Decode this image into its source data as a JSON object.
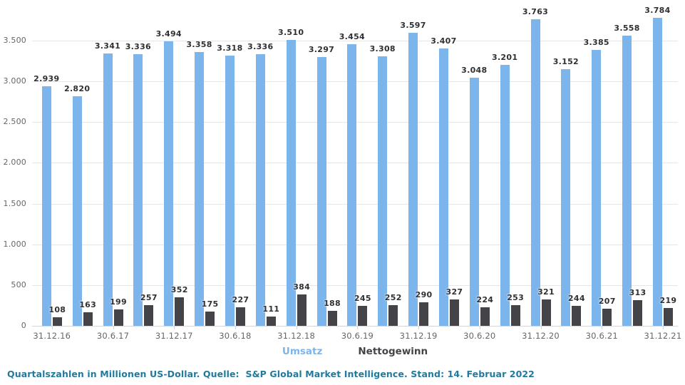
{
  "chart_data": {
    "type": "bar",
    "title": "",
    "group_count": 21,
    "x_tick_labels": [
      "31.12.16",
      "30.6.17",
      "31.12.17",
      "30.6.18",
      "31.12.18",
      "30.6.19",
      "31.12.19",
      "30.6.20",
      "31.12.20",
      "30.6.21",
      "31.12.21"
    ],
    "x_tick_label_every_n_groups": 2,
    "series": [
      {
        "name": "Umsatz",
        "color": "#7cb5ec",
        "values": [
          2939,
          2820,
          3341,
          3336,
          3494,
          3358,
          3318,
          3336,
          3510,
          3297,
          3454,
          3308,
          3597,
          3407,
          3048,
          3201,
          3763,
          3152,
          3385,
          3558,
          3784
        ]
      },
      {
        "name": "Nettogewinn",
        "color": "#434348",
        "values": [
          108,
          163,
          199,
          257,
          352,
          175,
          227,
          111,
          384,
          188,
          245,
          252,
          290,
          327,
          224,
          253,
          321,
          244,
          207,
          313,
          219
        ]
      }
    ],
    "yticks": [
      0,
      500,
      1000,
      1500,
      2000,
      2500,
      3000,
      3500
    ],
    "ylim": [
      0,
      3910
    ],
    "grid": "horizontal",
    "legend_position": "bottom-center",
    "number_format": "de-thousands-dot"
  },
  "legend": {
    "items": [
      "Umsatz",
      "Nettogewinn"
    ]
  },
  "footer": {
    "text": "Quartalszahlen in Millionen US-Dollar. Quelle:  S&P Global Market Intelligence. Stand: 14. Februar 2022"
  },
  "colors": {
    "background": "#ffffff",
    "umsatz_bar": "#7cb5ec",
    "nettogewinn_bar": "#434348",
    "gridline": "#e6e6e6",
    "axis_line": "#ccd6eb",
    "tick_label": "#666666",
    "data_label": "#303033",
    "footer_text": "#1f7a9e"
  }
}
